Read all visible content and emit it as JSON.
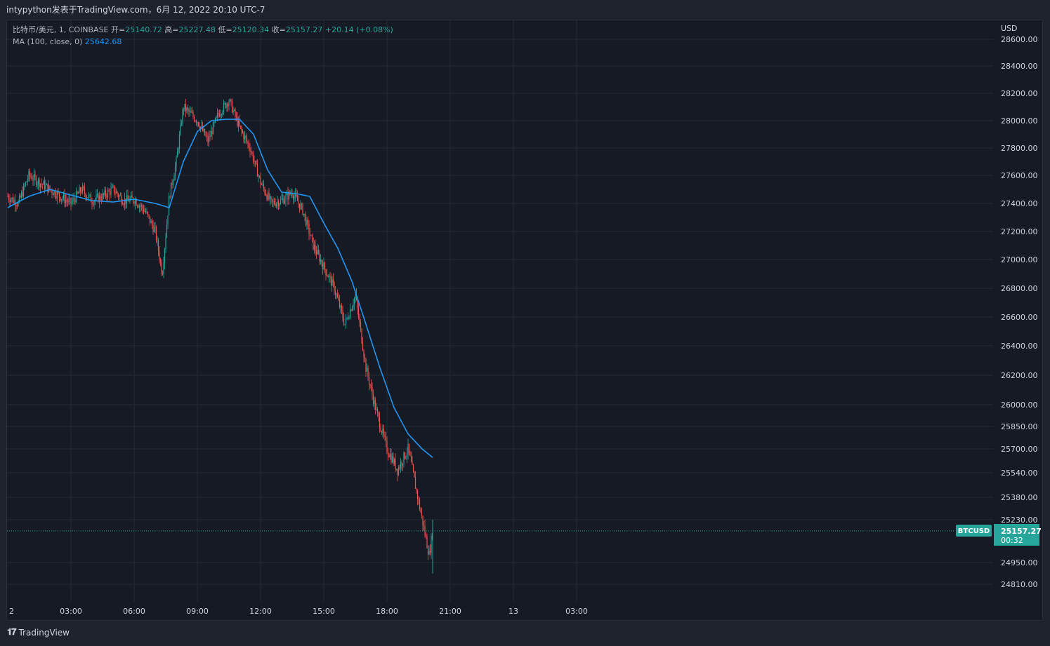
{
  "header": {
    "publisher_line": "intypython发表于TradingView.com，6月 12, 2022 20:10 UTC-7"
  },
  "legend": {
    "symbol_line": "比特币/美元, 1, COINBASE",
    "open_label": "开=",
    "open_value": "25140.72",
    "high_label": "高=",
    "high_value": "25227.48",
    "low_label": "低=",
    "low_value": "25120.34",
    "close_label": "收=",
    "close_value": "25157.27",
    "change": "+20.14 (+0.08%)",
    "ma_label": "MA (100, close, 0)",
    "ma_value": "25642.68"
  },
  "price_axis": {
    "currency": "USD",
    "ticks": [
      "28600.00",
      "28400.00",
      "28200.00",
      "28000.00",
      "27800.00",
      "27600.00",
      "27400.00",
      "27200.00",
      "27000.00",
      "26800.00",
      "26600.00",
      "26400.00",
      "26200.00",
      "26000.00",
      "25850.00",
      "25700.00",
      "25540.00",
      "25380.00",
      "25230.00",
      "24950.00",
      "24810.00"
    ]
  },
  "time_axis": {
    "ticks": [
      "2",
      "03:00",
      "06:00",
      "09:00",
      "12:00",
      "15:00",
      "18:00",
      "21:00",
      "13",
      "03:00"
    ]
  },
  "price_tag": {
    "symbol": "BTCUSD",
    "price": "25157.27",
    "countdown": "00:32"
  },
  "footer": {
    "brand": "TradingView"
  },
  "colors": {
    "up": "#26a69a",
    "down": "#ef5350",
    "ma": "#2196f3",
    "background": "#161a25",
    "grid": "#242a35",
    "tag": "#26a69a"
  },
  "chart_data": {
    "type": "line",
    "title": "比特币/美元, 1, COINBASE",
    "xlabel": "",
    "ylabel": "USD",
    "grid": true,
    "series": [
      {
        "name": "比特币/美元",
        "style": "candlestick",
        "x": [
          "00:00",
          "00:30",
          "01:00",
          "01:30",
          "02:00",
          "02:30",
          "03:00",
          "03:30",
          "04:00",
          "04:30",
          "05:00",
          "05:30",
          "06:00",
          "06:30",
          "07:00",
          "07:20",
          "07:40",
          "08:00",
          "08:20",
          "08:40",
          "09:00",
          "09:30",
          "10:00",
          "10:30",
          "11:00",
          "11:30",
          "12:00",
          "12:30",
          "13:00",
          "13:30",
          "14:00",
          "14:30",
          "15:00",
          "15:30",
          "16:00",
          "16:30",
          "17:00",
          "17:30",
          "18:00",
          "18:30",
          "19:00",
          "19:30",
          "20:00",
          "20:10"
        ],
        "values": [
          27450,
          27400,
          27600,
          27550,
          27500,
          27450,
          27400,
          27500,
          27420,
          27450,
          27500,
          27420,
          27430,
          27350,
          27200,
          26900,
          27450,
          27700,
          28100,
          28050,
          28000,
          27850,
          28050,
          28150,
          27950,
          27800,
          27550,
          27400,
          27420,
          27480,
          27350,
          27100,
          26950,
          26800,
          26550,
          26750,
          26250,
          25950,
          25700,
          25560,
          25700,
          25350,
          25000,
          25157.27
        ]
      },
      {
        "name": "MA (100, close, 0)",
        "x": [
          "00:00",
          "01:00",
          "02:00",
          "03:00",
          "04:00",
          "05:00",
          "06:00",
          "07:00",
          "07:40",
          "08:20",
          "09:00",
          "09:40",
          "10:20",
          "11:00",
          "11:40",
          "12:20",
          "13:00",
          "13:40",
          "14:20",
          "15:00",
          "15:40",
          "16:20",
          "17:00",
          "17:40",
          "18:20",
          "19:00",
          "19:40",
          "20:10"
        ],
        "values": [
          27370,
          27450,
          27500,
          27460,
          27420,
          27410,
          27430,
          27400,
          27370,
          27700,
          27920,
          28000,
          28010,
          28010,
          27900,
          27640,
          27480,
          27470,
          27450,
          27260,
          27080,
          26850,
          26550,
          26250,
          25980,
          25800,
          25700,
          25642.68
        ]
      }
    ],
    "last_price": 25157.27,
    "ylim": [
      24750,
      28650
    ]
  }
}
